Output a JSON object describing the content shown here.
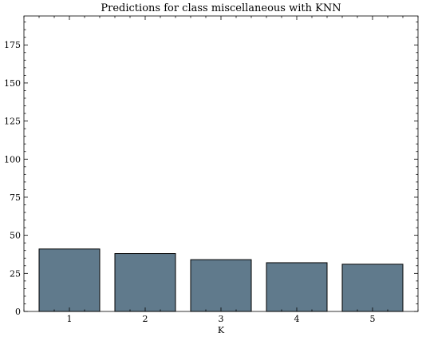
{
  "chart_data": {
    "type": "bar",
    "title": "Predictions for class miscellaneous with KNN",
    "xlabel": "K",
    "ylabel": "",
    "categories": [
      "1",
      "2",
      "3",
      "4",
      "5"
    ],
    "values": [
      41,
      38,
      34,
      32,
      31
    ],
    "ylim": [
      0,
      194
    ],
    "yticks": [
      0,
      25,
      50,
      75,
      100,
      125,
      150,
      175
    ],
    "grid": false,
    "bar_color": "#607a8c",
    "edge_color": "#000000"
  }
}
